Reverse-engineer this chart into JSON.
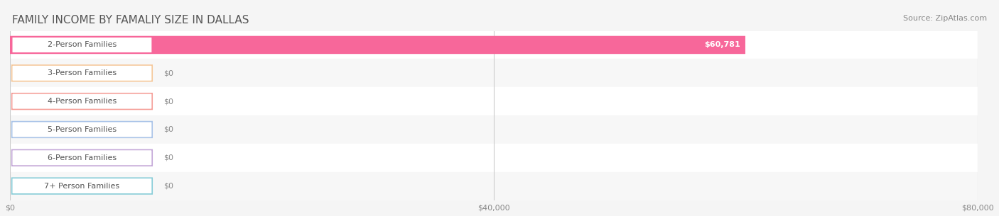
{
  "title": "FAMILY INCOME BY FAMALIY SIZE IN DALLAS",
  "source": "Source: ZipAtlas.com",
  "categories": [
    "2-Person Families",
    "3-Person Families",
    "4-Person Families",
    "5-Person Families",
    "6-Person Families",
    "7+ Person Families"
  ],
  "values": [
    60781,
    0,
    0,
    0,
    0,
    0
  ],
  "bar_colors": [
    "#f7679a",
    "#f5c89a",
    "#f5a09a",
    "#aac4e8",
    "#c4a8d8",
    "#88cdd8"
  ],
  "label_colors": [
    "#f7679a",
    "#f5c89a",
    "#f5a09a",
    "#aac4e8",
    "#c4a8d8",
    "#88cdd8"
  ],
  "bar_bg_color": "#f0f0f0",
  "row_bg_colors": [
    "#ffffff",
    "#f7f7f7"
  ],
  "xlim": [
    0,
    80000
  ],
  "xtick_values": [
    0,
    40000,
    80000
  ],
  "xtick_labels": [
    "$0",
    "$40,000",
    "$80,000"
  ],
  "value_labels": [
    "$60,781",
    "$0",
    "$0",
    "$0",
    "$0",
    "$0"
  ],
  "title_fontsize": 11,
  "source_fontsize": 8,
  "label_fontsize": 8,
  "tick_fontsize": 8,
  "figsize": [
    14.06,
    3.05
  ],
  "dpi": 100
}
